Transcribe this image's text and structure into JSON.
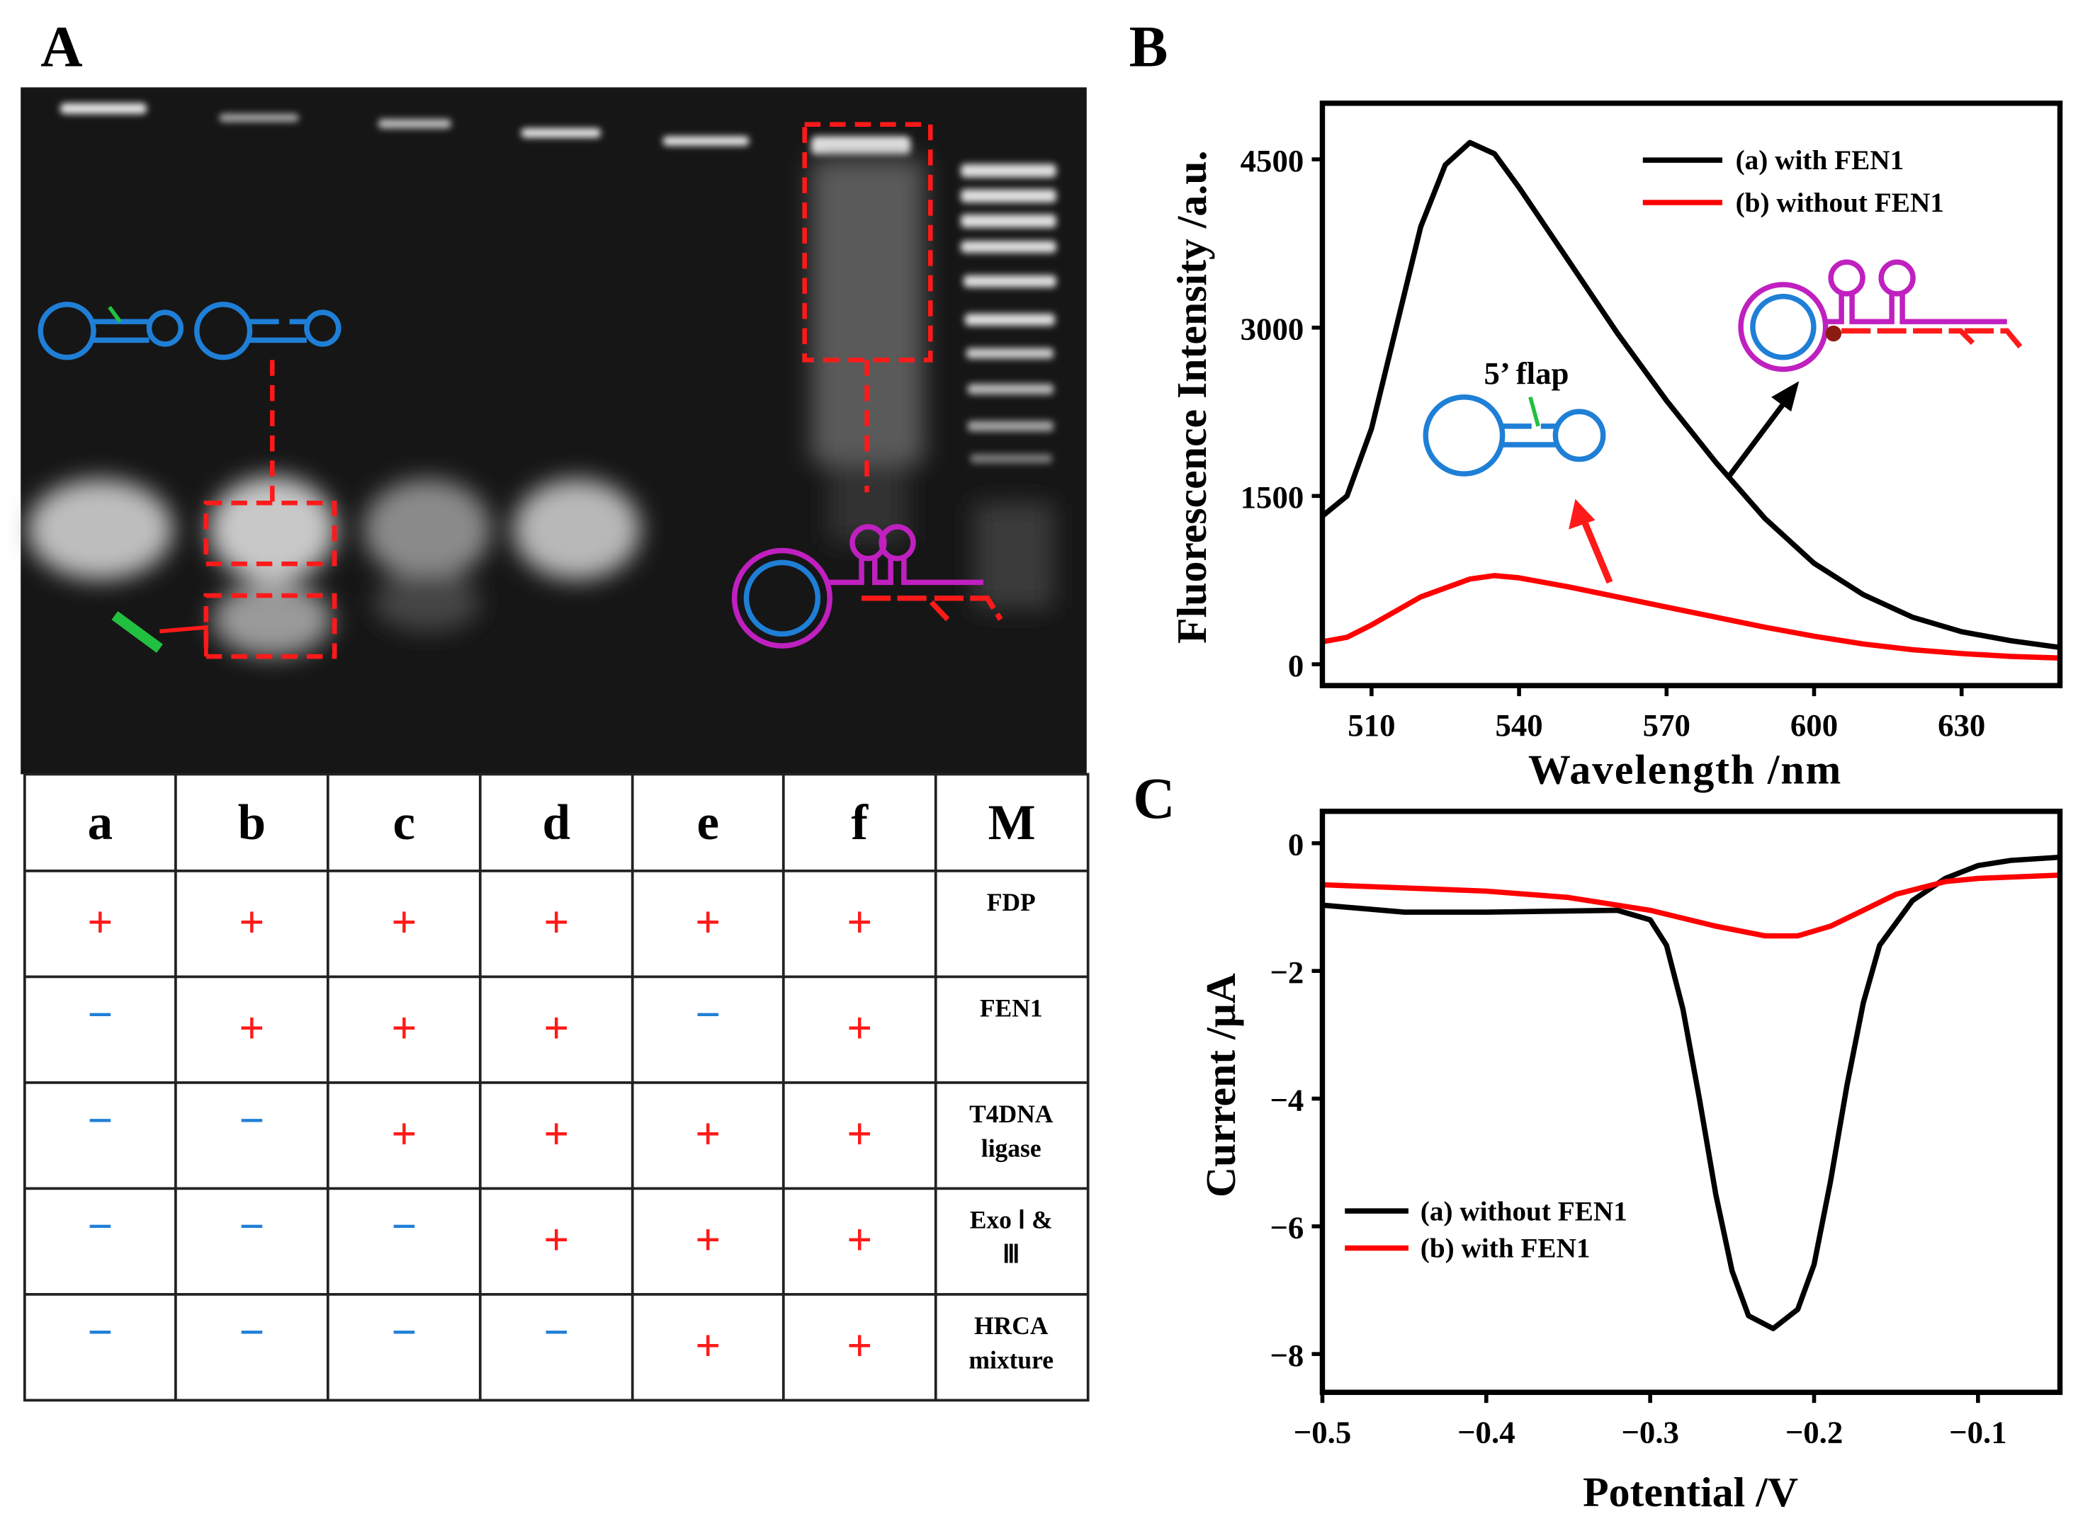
{
  "panels": {
    "a": "A",
    "b": "B",
    "c": "C"
  },
  "gel": {
    "lanes": [
      "a",
      "b",
      "c",
      "d",
      "e",
      "f",
      "M"
    ],
    "flap_label": "5’ flap"
  },
  "table": {
    "rows": [
      {
        "label": [
          "FDP"
        ],
        "signs": [
          "+",
          "+",
          "+",
          "+",
          "+",
          "+"
        ]
      },
      {
        "label": [
          "FEN1"
        ],
        "signs": [
          "−",
          "+",
          "+",
          "+",
          "−",
          "+"
        ]
      },
      {
        "label": [
          "T4DNA",
          "ligase"
        ],
        "signs": [
          "−",
          "−",
          "+",
          "+",
          "+",
          "+"
        ]
      },
      {
        "label": [
          "Exo Ⅰ &",
          "Ⅲ"
        ],
        "signs": [
          "−",
          "−",
          "−",
          "+",
          "+",
          "+"
        ]
      },
      {
        "label": [
          "HRCA",
          "mixture"
        ],
        "signs": [
          "−",
          "−",
          "−",
          "−",
          "+",
          "+"
        ]
      }
    ],
    "plus_color": "#ff1a1a",
    "minus_color": "#1f7fd6"
  },
  "chart_data": [
    {
      "type": "line",
      "panel": "B",
      "xlabel": "Wavelength /nm",
      "ylabel": "Fluorescence Intensity /a.u.",
      "xlim": [
        500,
        650
      ],
      "ylim": [
        -190,
        5000
      ],
      "xticks": [
        510,
        540,
        570,
        600,
        630
      ],
      "yticks": [
        0,
        1500,
        3000,
        4500
      ],
      "legend_position": "top-right",
      "series": [
        {
          "name": "(a) with FEN1",
          "color": "#000000",
          "x": [
            500,
            505,
            510,
            515,
            520,
            525,
            530,
            535,
            540,
            550,
            560,
            570,
            580,
            590,
            600,
            610,
            620,
            630,
            640,
            650
          ],
          "y": [
            1320,
            1500,
            2100,
            3000,
            3900,
            4450,
            4650,
            4550,
            4250,
            3600,
            2950,
            2350,
            1800,
            1300,
            900,
            620,
            420,
            290,
            210,
            150
          ]
        },
        {
          "name": "(b) without FEN1",
          "color": "#ff0000",
          "x": [
            500,
            505,
            510,
            520,
            530,
            535,
            540,
            550,
            560,
            570,
            580,
            590,
            600,
            610,
            620,
            630,
            640,
            650
          ],
          "y": [
            200,
            240,
            350,
            600,
            760,
            790,
            770,
            690,
            600,
            510,
            420,
            330,
            250,
            180,
            130,
            95,
            70,
            55
          ]
        }
      ]
    },
    {
      "type": "line",
      "panel": "C",
      "xlabel": "Potential /V",
      "ylabel": "Current /μA",
      "xlim": [
        -0.5,
        -0.05
      ],
      "ylim": [
        -8.6,
        0.5
      ],
      "xticks": [
        -0.5,
        -0.4,
        -0.3,
        -0.2,
        -0.1
      ],
      "xtick_labels": [
        "−0.5",
        "−0.4",
        "−0.3",
        "−0.2",
        "−0.1"
      ],
      "yticks": [
        0,
        -2,
        -4,
        -6,
        -8
      ],
      "ytick_labels": [
        "0",
        "−2",
        "−4",
        "−6",
        "−8"
      ],
      "legend_position": "bottom-left",
      "series": [
        {
          "name": "(a) without FEN1",
          "color": "#000000",
          "x": [
            -0.5,
            -0.45,
            -0.4,
            -0.35,
            -0.32,
            -0.3,
            -0.29,
            -0.28,
            -0.27,
            -0.26,
            -0.25,
            -0.24,
            -0.225,
            -0.21,
            -0.2,
            -0.19,
            -0.18,
            -0.17,
            -0.16,
            -0.14,
            -0.12,
            -0.1,
            -0.08,
            -0.05
          ],
          "y": [
            -0.97,
            -1.08,
            -1.08,
            -1.06,
            -1.05,
            -1.2,
            -1.6,
            -2.6,
            -4,
            -5.5,
            -6.7,
            -7.4,
            -7.6,
            -7.3,
            -6.6,
            -5.3,
            -3.8,
            -2.5,
            -1.6,
            -0.9,
            -0.55,
            -0.35,
            -0.27,
            -0.22
          ]
        },
        {
          "name": "(b) with FEN1",
          "color": "#ff0000",
          "x": [
            -0.5,
            -0.4,
            -0.35,
            -0.3,
            -0.26,
            -0.23,
            -0.21,
            -0.19,
            -0.17,
            -0.15,
            -0.12,
            -0.1,
            -0.05
          ],
          "y": [
            -0.65,
            -0.75,
            -0.85,
            -1.05,
            -1.3,
            -1.45,
            -1.45,
            -1.3,
            -1.05,
            -0.8,
            -0.6,
            -0.55,
            -0.5
          ]
        }
      ]
    }
  ]
}
